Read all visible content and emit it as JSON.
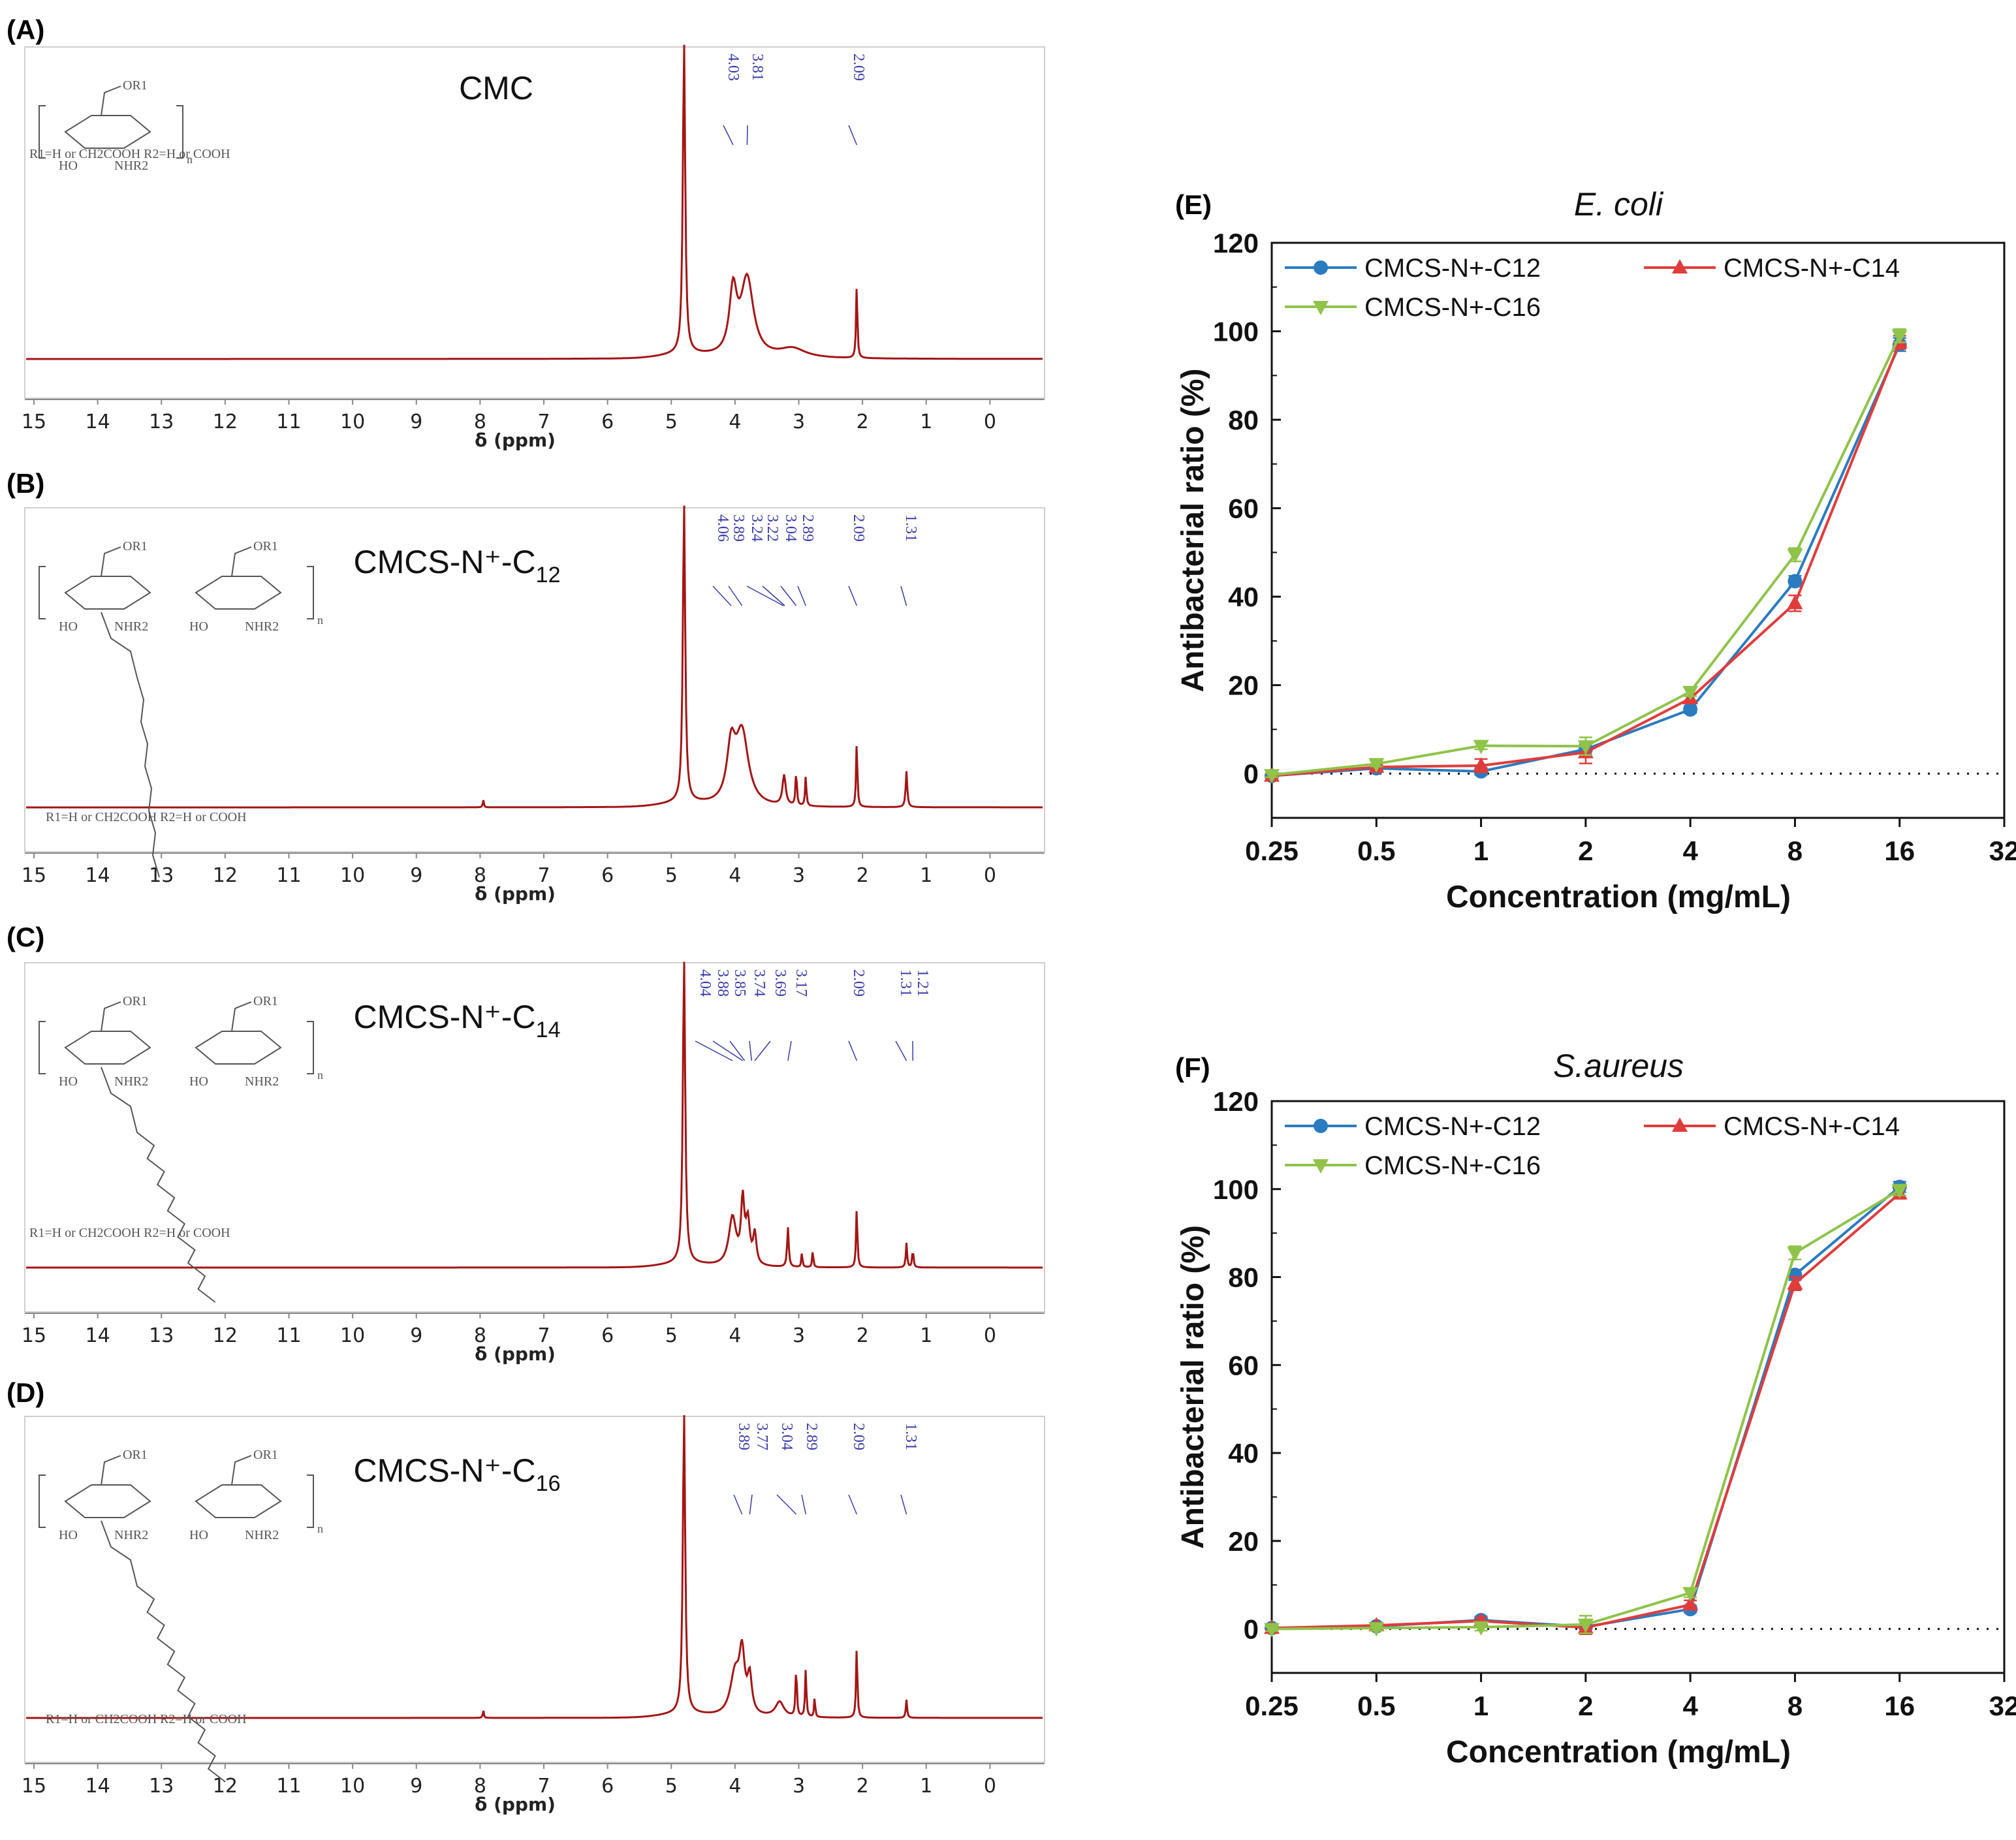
{
  "colors": {
    "spectrum": "#a31515",
    "peak_label": "#3a3aa8",
    "structure": "#555555",
    "c12": "#2a7bc0",
    "c14": "#e03c3c",
    "c16": "#8fc34a",
    "axis": "#111111"
  },
  "chart_data": [
    {
      "panel": "(A)",
      "type": "line",
      "title": "CMC",
      "title_main": "CMC",
      "title_sub": "",
      "xlabel": "δ (ppm)",
      "xlim": [
        15,
        -1
      ],
      "ticks": [
        "15",
        "14",
        "13",
        "12",
        "11",
        "10",
        "9",
        "8",
        "7",
        "6",
        "5",
        "4",
        "3",
        "2",
        "1",
        "0"
      ],
      "peak_labels": [
        "4.03",
        "3.81",
        "2.09"
      ],
      "structure_label": "R1=H or CH2COOH      R2=H or COOH",
      "structure_r1": "OR1",
      "structure_ho": "HO",
      "structure_nh": "NHR2",
      "structure_n": "n",
      "peaks": [
        {
          "ppm": 4.8,
          "height": 1.0,
          "width": 0.022
        },
        {
          "ppm": 4.03,
          "height": 0.2,
          "width": 0.07
        },
        {
          "ppm": 3.81,
          "height": 0.25,
          "width": 0.12
        },
        {
          "ppm": 3.1,
          "height": 0.03,
          "width": 0.25
        },
        {
          "ppm": 2.09,
          "height": 0.24,
          "width": 0.012
        }
      ]
    },
    {
      "panel": "(B)",
      "type": "line",
      "title": "CMCS-N⁺-C12",
      "title_main": "CMCS-N⁺-C",
      "title_sub": "12",
      "xlabel": "δ (ppm)",
      "xlim": [
        15,
        -1
      ],
      "ticks": [
        "15",
        "14",
        "13",
        "12",
        "11",
        "10",
        "9",
        "8",
        "7",
        "6",
        "5",
        "4",
        "3",
        "2",
        "1",
        "0"
      ],
      "peak_labels": [
        "4.06",
        "3.89",
        "3.24",
        "3.22",
        "3.04",
        "2.89",
        "2.09",
        "1.31"
      ],
      "structure_label": "R1=H or CH2COOH      R2=H or COOH",
      "structure_r1": "OR1",
      "structure_ho": "HO",
      "structure_nh": "NHR2",
      "structure_n": "n",
      "peaks": [
        {
          "ppm": 4.8,
          "height": 1.0,
          "width": 0.022
        },
        {
          "ppm": 4.06,
          "height": 0.18,
          "width": 0.08
        },
        {
          "ppm": 3.89,
          "height": 0.24,
          "width": 0.12
        },
        {
          "ppm": 3.23,
          "height": 0.1,
          "width": 0.03
        },
        {
          "ppm": 3.04,
          "height": 0.12,
          "width": 0.012
        },
        {
          "ppm": 2.89,
          "height": 0.1,
          "width": 0.012
        },
        {
          "ppm": 2.09,
          "height": 0.22,
          "width": 0.012
        },
        {
          "ppm": 1.31,
          "height": 0.12,
          "width": 0.015
        },
        {
          "ppm": 7.95,
          "height": 0.025,
          "width": 0.01
        }
      ]
    },
    {
      "panel": "(C)",
      "type": "line",
      "title": "CMCS-N⁺-C14",
      "title_main": "CMCS-N⁺-C",
      "title_sub": "14",
      "xlabel": "δ (ppm)",
      "xlim": [
        15,
        -1
      ],
      "ticks": [
        "15",
        "14",
        "13",
        "12",
        "11",
        "10",
        "9",
        "8",
        "7",
        "6",
        "5",
        "4",
        "3",
        "2",
        "1",
        "0"
      ],
      "peak_labels": [
        "4.04",
        "3.88",
        "3.85",
        "3.74",
        "3.69",
        "3.17",
        "2.09",
        "1.31",
        "1.21"
      ],
      "structure_label": "R1=H or CH2COOH      R2=H or COOH",
      "structure_r1": "OR1",
      "structure_ho": "HO",
      "structure_nh": "NHR2",
      "structure_n": "n",
      "peaks": [
        {
          "ppm": 4.8,
          "height": 1.0,
          "width": 0.022
        },
        {
          "ppm": 4.04,
          "height": 0.16,
          "width": 0.07
        },
        {
          "ppm": 3.88,
          "height": 0.2,
          "width": 0.03
        },
        {
          "ppm": 3.8,
          "height": 0.14,
          "width": 0.04
        },
        {
          "ppm": 3.69,
          "height": 0.1,
          "width": 0.03
        },
        {
          "ppm": 3.17,
          "height": 0.13,
          "width": 0.015
        },
        {
          "ppm": 2.95,
          "height": 0.05,
          "width": 0.01
        },
        {
          "ppm": 2.78,
          "height": 0.06,
          "width": 0.01
        },
        {
          "ppm": 2.09,
          "height": 0.2,
          "width": 0.012
        },
        {
          "ppm": 1.31,
          "height": 0.08,
          "width": 0.012
        },
        {
          "ppm": 1.21,
          "height": 0.06,
          "width": 0.012
        }
      ]
    },
    {
      "panel": "(D)",
      "type": "line",
      "title": "CMCS-N⁺-C16",
      "title_main": "CMCS-N⁺-C",
      "title_sub": "16",
      "xlabel": "δ (ppm)",
      "xlim": [
        15,
        -1
      ],
      "ticks": [
        "15",
        "14",
        "13",
        "12",
        "11",
        "10",
        "9",
        "8",
        "7",
        "6",
        "5",
        "4",
        "3",
        "2",
        "1",
        "0"
      ],
      "peak_labels": [
        "3.89",
        "3.77",
        "3.04",
        "2.89",
        "2.09",
        "1.31"
      ],
      "structure_label": "R1=H or CH2COOH      R2=H or COOH",
      "structure_r1": "OR1",
      "structure_ho": "HO",
      "structure_nh": "NHR2",
      "structure_n": "n",
      "peaks": [
        {
          "ppm": 4.8,
          "height": 1.0,
          "width": 0.022
        },
        {
          "ppm": 4.0,
          "height": 0.14,
          "width": 0.09
        },
        {
          "ppm": 3.89,
          "height": 0.19,
          "width": 0.05
        },
        {
          "ppm": 3.77,
          "height": 0.12,
          "width": 0.04
        },
        {
          "ppm": 3.3,
          "height": 0.05,
          "width": 0.08
        },
        {
          "ppm": 3.04,
          "height": 0.17,
          "width": 0.012
        },
        {
          "ppm": 2.89,
          "height": 0.16,
          "width": 0.012
        },
        {
          "ppm": 2.75,
          "height": 0.07,
          "width": 0.01
        },
        {
          "ppm": 2.09,
          "height": 0.24,
          "width": 0.012
        },
        {
          "ppm": 1.31,
          "height": 0.06,
          "width": 0.012
        },
        {
          "ppm": 7.95,
          "height": 0.025,
          "width": 0.01
        }
      ]
    },
    {
      "panel": "(E)",
      "type": "line",
      "title": "E. coli",
      "xlabel": "Concentration (mg/mL)",
      "ylabel": "Antibacterial ratio (%)",
      "x": [
        0.25,
        0.5,
        1,
        2,
        4,
        8,
        16
      ],
      "x_ticks": [
        "0.25",
        "0.5",
        "1",
        "2",
        "4",
        "8",
        "16",
        "32"
      ],
      "y_ticks": [
        "0",
        "20",
        "40",
        "60",
        "80",
        "100",
        "120"
      ],
      "ylim": [
        -10,
        120
      ],
      "series": [
        {
          "name": "CMCS-N+-C12",
          "values": [
            -0.5,
            1.2,
            0.5,
            5.5,
            14.5,
            43.5,
            97.0
          ],
          "errors": [
            0.5,
            0.6,
            0.8,
            1.2,
            0.8,
            1.2,
            1.5
          ]
        },
        {
          "name": "CMCS-N+-C14",
          "values": [
            -0.5,
            1.5,
            1.8,
            4.8,
            17.0,
            38.5,
            97.5
          ],
          "errors": [
            0.5,
            0.6,
            1.5,
            2.5,
            1.0,
            1.8,
            1.5
          ]
        },
        {
          "name": "CMCS-N+-C16",
          "values": [
            -0.3,
            2.2,
            6.3,
            6.2,
            18.5,
            49.5,
            99.0
          ],
          "errors": [
            0.5,
            0.6,
            0.8,
            2.0,
            1.0,
            1.5,
            1.5
          ]
        }
      ]
    },
    {
      "panel": "(F)",
      "type": "line",
      "title": "S.aureus",
      "xlabel": "Concentration (mg/mL)",
      "ylabel": "Antibacterial ratio (%)",
      "x": [
        0.25,
        0.5,
        1,
        2,
        4,
        8,
        16
      ],
      "x_ticks": [
        "0.25",
        "0.5",
        "1",
        "2",
        "4",
        "8",
        "16",
        "32"
      ],
      "y_ticks": [
        "0",
        "20",
        "40",
        "60",
        "80",
        "100",
        "120"
      ],
      "ylim": [
        -10,
        120
      ],
      "series": [
        {
          "name": "CMCS-N+-C12",
          "values": [
            0.2,
            0.6,
            2.0,
            0.5,
            4.5,
            80.5,
            100.5
          ],
          "errors": [
            0.5,
            0.6,
            0.8,
            1.2,
            0.8,
            1.2,
            1.2
          ]
        },
        {
          "name": "CMCS-N+-C14",
          "values": [
            0.2,
            0.8,
            1.8,
            0.3,
            5.5,
            78.5,
            99.0
          ],
          "errors": [
            0.5,
            0.6,
            0.8,
            1.5,
            1.0,
            1.5,
            1.2
          ]
        },
        {
          "name": "CMCS-N+-C16",
          "values": [
            0.0,
            0.2,
            0.4,
            1.0,
            8.2,
            85.5,
            99.8
          ],
          "errors": [
            0.5,
            0.6,
            0.8,
            2.0,
            1.0,
            1.5,
            1.2
          ]
        }
      ]
    }
  ]
}
